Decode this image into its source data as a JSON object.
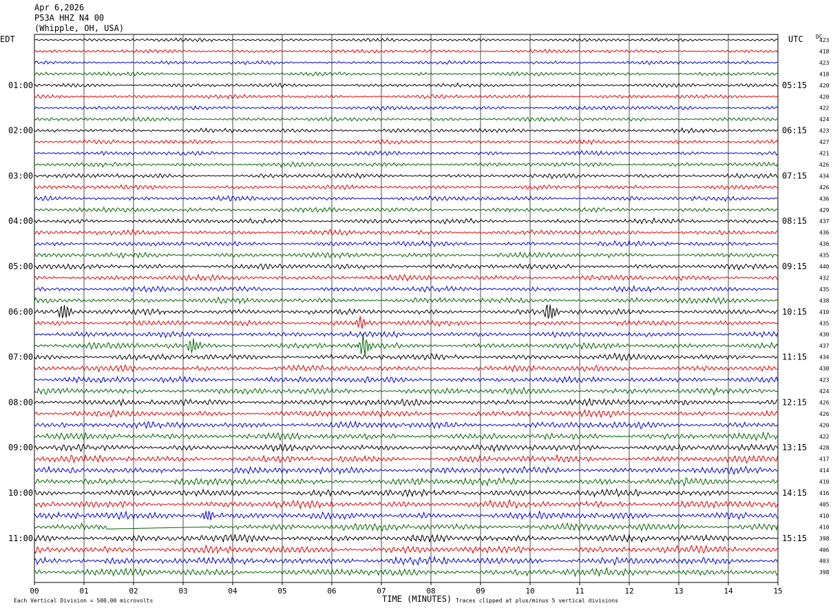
{
  "header": {
    "date": "Apr 6,2026",
    "station": "P53A HHZ N4 00",
    "location": "(Whipple, OH, USA)"
  },
  "axes": {
    "left_tz": "EDT",
    "right_tz": "UTC",
    "dc_label": "DC",
    "xlabel": "TIME (MINUTES)"
  },
  "footer": {
    "scale_note": "Each Vertical Division =  500.00 microvolts",
    "clip_note": "Traces clipped at plus/minus 5 vertical divisions"
  },
  "colors": {
    "trace_cycle": [
      "#000000",
      "#e00000",
      "#0000d0",
      "#006400"
    ],
    "grid": "#000000"
  },
  "chart_data": {
    "type": "line",
    "title": "",
    "xlabel": "TIME (MINUTES)",
    "x_ticks": [
      "00",
      "01",
      "02",
      "03",
      "04",
      "05",
      "06",
      "07",
      "08",
      "09",
      "10",
      "11",
      "12",
      "13",
      "14",
      "15"
    ],
    "xlim": [
      0,
      15
    ],
    "trace_count": 48,
    "minutes_per_trace": 15,
    "left_time_labels": [
      "01:00",
      "02:00",
      "03:00",
      "04:00",
      "05:00",
      "06:00",
      "07:00",
      "08:00",
      "09:00",
      "10:00",
      "11:00"
    ],
    "right_time_labels": [
      "05:15",
      "06:15",
      "07:15",
      "08:15",
      "09:15",
      "10:15",
      "11:15",
      "12:15",
      "13:15",
      "14:15",
      "15:15"
    ],
    "dc_offsets": [
      423,
      418,
      423,
      418,
      420,
      420,
      422,
      424,
      423,
      427,
      421,
      426,
      434,
      426,
      436,
      429,
      437,
      436,
      436,
      435,
      440,
      432,
      435,
      438,
      410,
      435,
      430,
      437,
      434,
      430,
      423,
      424,
      426,
      426,
      420,
      422,
      428,
      417,
      414,
      410,
      416,
      405,
      410,
      410,
      398,
      406,
      403,
      398
    ],
    "events": [
      {
        "trace": 24,
        "minute": 0.6,
        "amplitude": 1.8
      },
      {
        "trace": 24,
        "minute": 10.4,
        "amplitude": 2.0
      },
      {
        "trace": 25,
        "minute": 6.6,
        "amplitude": 1.3
      },
      {
        "trace": 27,
        "minute": 3.2,
        "amplitude": 1.6
      },
      {
        "trace": 27,
        "minute": 6.65,
        "amplitude": 2.4
      },
      {
        "trace": 42,
        "minute": 3.5,
        "amplitude": 1.2
      }
    ],
    "gaps": [
      {
        "trace": 43,
        "start_minute": 1.45,
        "end_minute": 3.5
      }
    ]
  }
}
